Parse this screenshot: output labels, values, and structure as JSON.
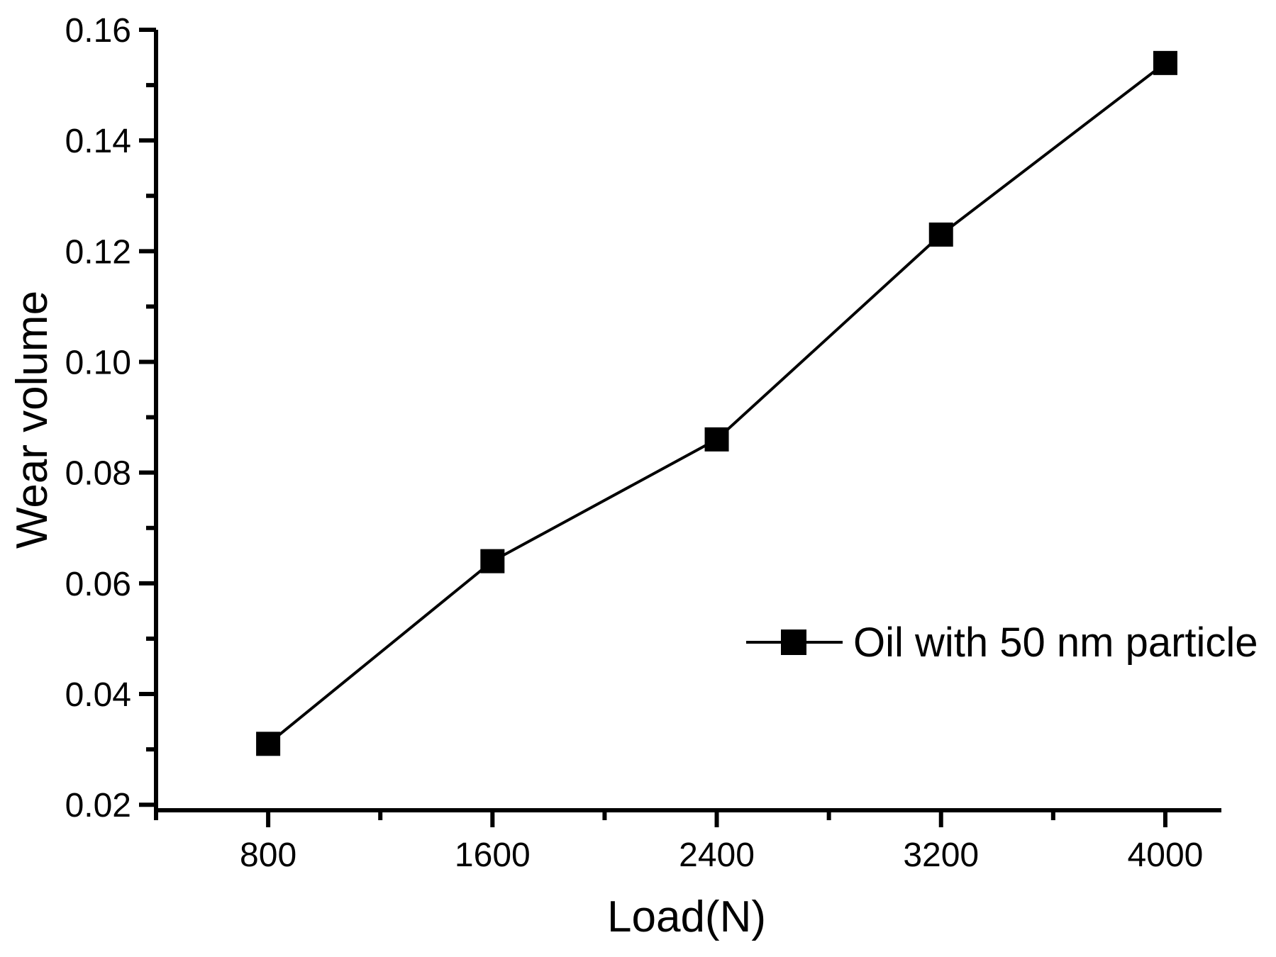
{
  "chart_data": {
    "type": "line",
    "title": "",
    "xlabel": "Load(N)",
    "ylabel": "Wear volume",
    "xlim": [
      400,
      4200
    ],
    "ylim": [
      0.019,
      0.16
    ],
    "grid": false,
    "x": [
      800,
      1600,
      2400,
      3200,
      4000
    ],
    "series": [
      {
        "name": "Oil with 50 nm particle",
        "values": [
          0.031,
          0.064,
          0.086,
          0.123,
          0.154
        ],
        "color": "#000000",
        "marker": "filled-square"
      }
    ],
    "x_ticks": {
      "major": [
        {
          "value": 800,
          "label": "800"
        },
        {
          "value": 1600,
          "label": "1600"
        },
        {
          "value": 2400,
          "label": "2400"
        },
        {
          "value": 3200,
          "label": "3200"
        },
        {
          "value": 4000,
          "label": "4000"
        }
      ],
      "minor": [
        400,
        1200,
        2000,
        2800,
        3600
      ]
    },
    "y_ticks": {
      "major": [
        {
          "value": 0.02,
          "label": "0.02"
        },
        {
          "value": 0.04,
          "label": "0.04"
        },
        {
          "value": 0.06,
          "label": "0.06"
        },
        {
          "value": 0.08,
          "label": "0.08"
        },
        {
          "value": 0.1,
          "label": "0.10"
        },
        {
          "value": 0.12,
          "label": "0.12"
        },
        {
          "value": 0.14,
          "label": "0.14"
        },
        {
          "value": 0.16,
          "label": "0.16"
        }
      ],
      "minor": [
        0.03,
        0.05,
        0.07,
        0.09,
        0.11,
        0.13,
        0.15
      ]
    },
    "legend": {
      "position": "right-center",
      "entries": [
        "Oil with 50 nm particle"
      ]
    }
  },
  "colors": {
    "foreground": "#000000",
    "background": "#ffffff"
  }
}
